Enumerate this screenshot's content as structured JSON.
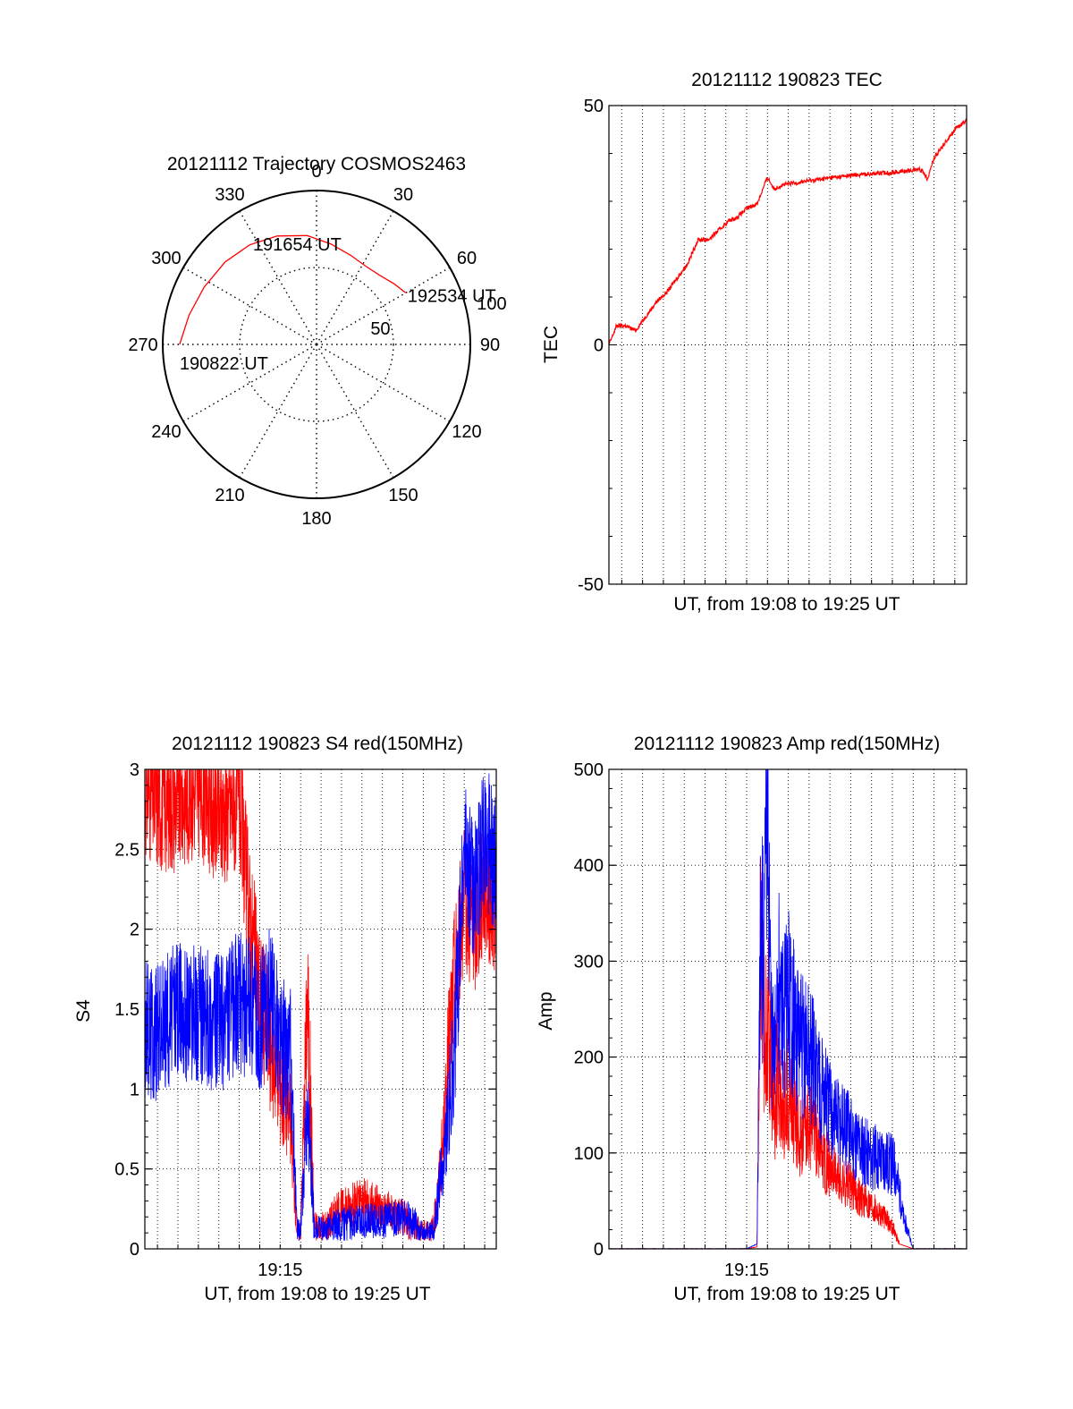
{
  "colors": {
    "red": "#ff0000",
    "blue": "#0000ff",
    "axis": "#000000"
  },
  "chart_data": [
    {
      "id": "trajectory",
      "type": "polar",
      "title": "20121112 Trajectory COSMOS2463",
      "angle_labels": [
        "0",
        "30",
        "60",
        "90",
        "120",
        "150",
        "180",
        "210",
        "240",
        "270",
        "300",
        "330"
      ],
      "radial_labels": [
        "50",
        "100"
      ],
      "radial_values": [
        50,
        100
      ],
      "radial_max": 100,
      "grid": true,
      "track": {
        "azimuth_deg": [
          270,
          283,
          297,
          312,
          326,
          340,
          355,
          8,
          21,
          33,
          43,
          52,
          60
        ],
        "radius": [
          89,
          85,
          82,
          80,
          78,
          75,
          71,
          66,
          62,
          60,
          61,
          64,
          67
        ]
      },
      "annotations": [
        {
          "text": "190822 UT",
          "azimuth_deg": 270,
          "radius": 89
        },
        {
          "text": "191654 UT",
          "azimuth_deg": 348,
          "radius": 73
        },
        {
          "text": "192534 UT",
          "azimuth_deg": 60,
          "radius": 67
        }
      ]
    },
    {
      "id": "tec",
      "type": "line",
      "title": "20121112 190823 TEC",
      "xlabel": "UT, from 19:08 to 19:25 UT",
      "ylabel": "TEC",
      "xlim": [
        "19:08:23",
        "19:25:34"
      ],
      "ylim": [
        -50,
        50
      ],
      "yticks": [
        "-50",
        "0",
        "50"
      ],
      "ytick_values": [
        -50,
        0,
        50
      ],
      "grid": true,
      "series": [
        {
          "color": "red",
          "x": [
            "19:08:23",
            "19:08:45",
            "19:09:10",
            "19:09:40",
            "19:10:10",
            "19:10:40",
            "19:11:10",
            "19:11:40",
            "19:12:10",
            "19:12:40",
            "19:13:10",
            "19:13:40",
            "19:14:10",
            "19:14:30",
            "19:15:00",
            "19:15:30",
            "19:16:00",
            "19:16:20",
            "19:16:30",
            "19:16:35",
            "19:16:42",
            "19:17:00",
            "19:18:00",
            "19:19:00",
            "19:20:00",
            "19:21:00",
            "19:22:00",
            "19:23:00",
            "19:23:15",
            "19:23:30",
            "19:23:40",
            "19:24:00",
            "19:24:30",
            "19:25:00",
            "19:25:34"
          ],
          "values": [
            0,
            4,
            4,
            3,
            6,
            9,
            11,
            14,
            17,
            22,
            22,
            24,
            26,
            26.5,
            28.5,
            29.5,
            35,
            32.5,
            33,
            33.2,
            33.4,
            33.6,
            34.3,
            34.9,
            35.4,
            35.8,
            36.0,
            36.5,
            36.8,
            36.2,
            34.6,
            39,
            42,
            45,
            47
          ]
        }
      ]
    },
    {
      "id": "s4",
      "type": "line",
      "title": "20121112 190823 S4 red(150MHz)",
      "xlabel": "UT, from 19:08 to 19:25 UT",
      "ylabel": "S4",
      "xlim": [
        "19:08:23",
        "19:25:34"
      ],
      "ylim": [
        0,
        3
      ],
      "yticks": [
        "0",
        "0.5",
        "1",
        "1.5",
        "2",
        "2.5",
        "3"
      ],
      "ytick_values": [
        0,
        0.5,
        1,
        1.5,
        2,
        2.5,
        3
      ],
      "xticks": [
        "19:15"
      ],
      "xtick_values": [
        "19:15:00"
      ],
      "grid": true,
      "series": [
        {
          "color": "red",
          "x": [
            "19:08:23",
            "19:09:00",
            "19:10:00",
            "19:11:00",
            "19:12:00",
            "19:13:00",
            "19:13:30",
            "19:14:00",
            "19:14:30",
            "19:15:00",
            "19:15:30",
            "19:15:50",
            "19:16:00",
            "19:16:20",
            "19:16:40",
            "19:17:00",
            "19:17:20",
            "19:17:40",
            "19:18:00",
            "19:19:00",
            "19:20:00",
            "19:21:00",
            "19:21:40",
            "19:22:00",
            "19:22:30",
            "19:23:00",
            "19:23:30",
            "19:24:00",
            "19:24:30",
            "19:25:00",
            "19:25:34"
          ],
          "values": [
            2.9,
            2.8,
            2.8,
            2.9,
            2.7,
            2.8,
            2.1,
            1.6,
            1.3,
            1.1,
            0.8,
            0.1,
            0.12,
            1.6,
            0.15,
            0.13,
            0.16,
            0.22,
            0.25,
            0.3,
            0.25,
            0.2,
            0.12,
            0.1,
            0.12,
            0.7,
            1.7,
            2.2,
            2.0,
            2.3,
            2.1
          ]
        },
        {
          "color": "blue",
          "x": [
            "19:08:23",
            "19:09:00",
            "19:10:00",
            "19:11:00",
            "19:12:00",
            "19:13:00",
            "19:13:30",
            "19:14:00",
            "19:14:30",
            "19:15:00",
            "19:15:30",
            "19:15:50",
            "19:16:00",
            "19:16:20",
            "19:16:40",
            "19:17:00",
            "19:17:20",
            "19:17:40",
            "19:18:00",
            "19:19:00",
            "19:20:00",
            "19:21:00",
            "19:21:40",
            "19:22:00",
            "19:22:30",
            "19:23:00",
            "19:23:30",
            "19:24:00",
            "19:24:30",
            "19:25:00",
            "19:25:34"
          ],
          "values": [
            1.35,
            1.35,
            1.5,
            1.45,
            1.4,
            1.55,
            1.5,
            1.4,
            1.6,
            1.3,
            1.2,
            0.1,
            0.1,
            0.9,
            0.12,
            0.11,
            0.12,
            0.15,
            0.15,
            0.18,
            0.17,
            0.2,
            0.15,
            0.08,
            0.1,
            0.6,
            1.2,
            2.5,
            2.2,
            2.6,
            2.4
          ]
        }
      ]
    },
    {
      "id": "amp",
      "type": "line",
      "title": "20121112 190823 Amp red(150MHz)",
      "xlabel": "UT, from 19:08 to 19:25 UT",
      "ylabel": "Amp",
      "xlim": [
        "19:08:23",
        "19:25:34"
      ],
      "ylim": [
        0,
        500
      ],
      "yticks": [
        "0",
        "100",
        "200",
        "300",
        "400",
        "500"
      ],
      "ytick_values": [
        0,
        100,
        200,
        300,
        400,
        500
      ],
      "xticks": [
        "19:15"
      ],
      "xtick_values": [
        "19:15:00"
      ],
      "grid": true,
      "series": [
        {
          "color": "red",
          "x": [
            "19:08:23",
            "19:12:00",
            "19:15:00",
            "19:15:30",
            "19:15:40",
            "19:15:50",
            "19:16:00",
            "19:16:10",
            "19:16:20",
            "19:16:30",
            "19:16:40",
            "19:17:00",
            "19:17:30",
            "19:18:00",
            "19:18:30",
            "19:19:00",
            "19:19:30",
            "19:20:00",
            "19:20:30",
            "19:21:00",
            "19:21:30",
            "19:22:00",
            "19:22:20",
            "19:23:00",
            "19:25:34"
          ],
          "values": [
            0,
            0,
            0,
            2,
            280,
            190,
            210,
            170,
            110,
            160,
            120,
            140,
            100,
            110,
            90,
            70,
            60,
            55,
            45,
            40,
            30,
            20,
            5,
            0,
            0
          ]
        },
        {
          "color": "blue",
          "x": [
            "19:08:23",
            "19:12:00",
            "19:15:00",
            "19:15:30",
            "19:15:40",
            "19:15:50",
            "19:16:00",
            "19:16:10",
            "19:16:20",
            "19:16:30",
            "19:16:40",
            "19:17:00",
            "19:17:30",
            "19:18:00",
            "19:18:30",
            "19:19:00",
            "19:19:30",
            "19:20:00",
            "19:20:30",
            "19:21:00",
            "19:21:30",
            "19:22:00",
            "19:22:10",
            "19:22:30",
            "19:23:00",
            "19:25:34"
          ],
          "values": [
            0,
            0,
            0,
            5,
            300,
            240,
            430,
            200,
            150,
            260,
            200,
            220,
            180,
            170,
            150,
            120,
            110,
            100,
            90,
            80,
            80,
            75,
            70,
            30,
            0,
            0
          ]
        }
      ]
    }
  ]
}
